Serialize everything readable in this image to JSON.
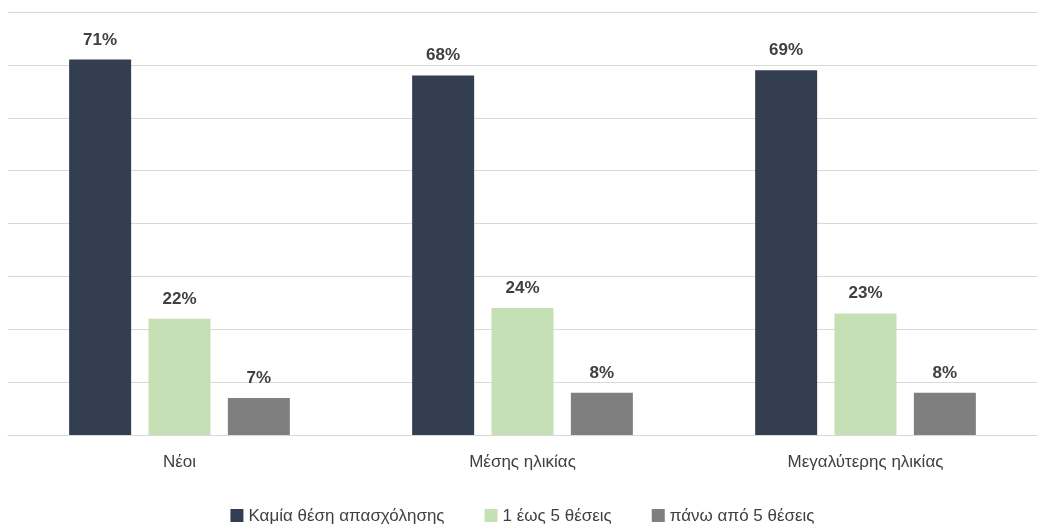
{
  "chart_data": {
    "type": "bar",
    "categories": [
      "Νέοι",
      "Μέσης ηλικίας",
      "Μεγαλύτερης ηλικίας"
    ],
    "series": [
      {
        "name": "Καμία θέση απασχόλησης",
        "color": "#333f50",
        "values": [
          71,
          68,
          69
        ],
        "value_labels": [
          "71%",
          "68%",
          "69%"
        ]
      },
      {
        "name": "1 έως 5 θέσεις",
        "color": "#c5e0b4",
        "values": [
          22,
          24,
          23
        ],
        "value_labels": [
          "22%",
          "24%",
          "23%"
        ]
      },
      {
        "name": "πάνω από 5 θέσεις",
        "color": "#7f7f7f",
        "values": [
          7,
          8,
          8
        ],
        "value_labels": [
          "7%",
          "8%",
          "8%"
        ]
      }
    ],
    "ylim": [
      0,
      80
    ],
    "yticks": [
      {
        "value": 0,
        "label": null
      },
      {
        "value": 10,
        "label": null
      },
      {
        "value": 20,
        "label": null
      },
      {
        "value": 30,
        "label": null
      },
      {
        "value": 40,
        "label": null
      },
      {
        "value": 50,
        "label": null
      },
      {
        "value": 60,
        "label": null
      },
      {
        "value": 70,
        "label": null
      },
      {
        "value": 80,
        "label": null
      }
    ],
    "grid": "y",
    "legend": "bottom",
    "tick_labels": "x"
  }
}
